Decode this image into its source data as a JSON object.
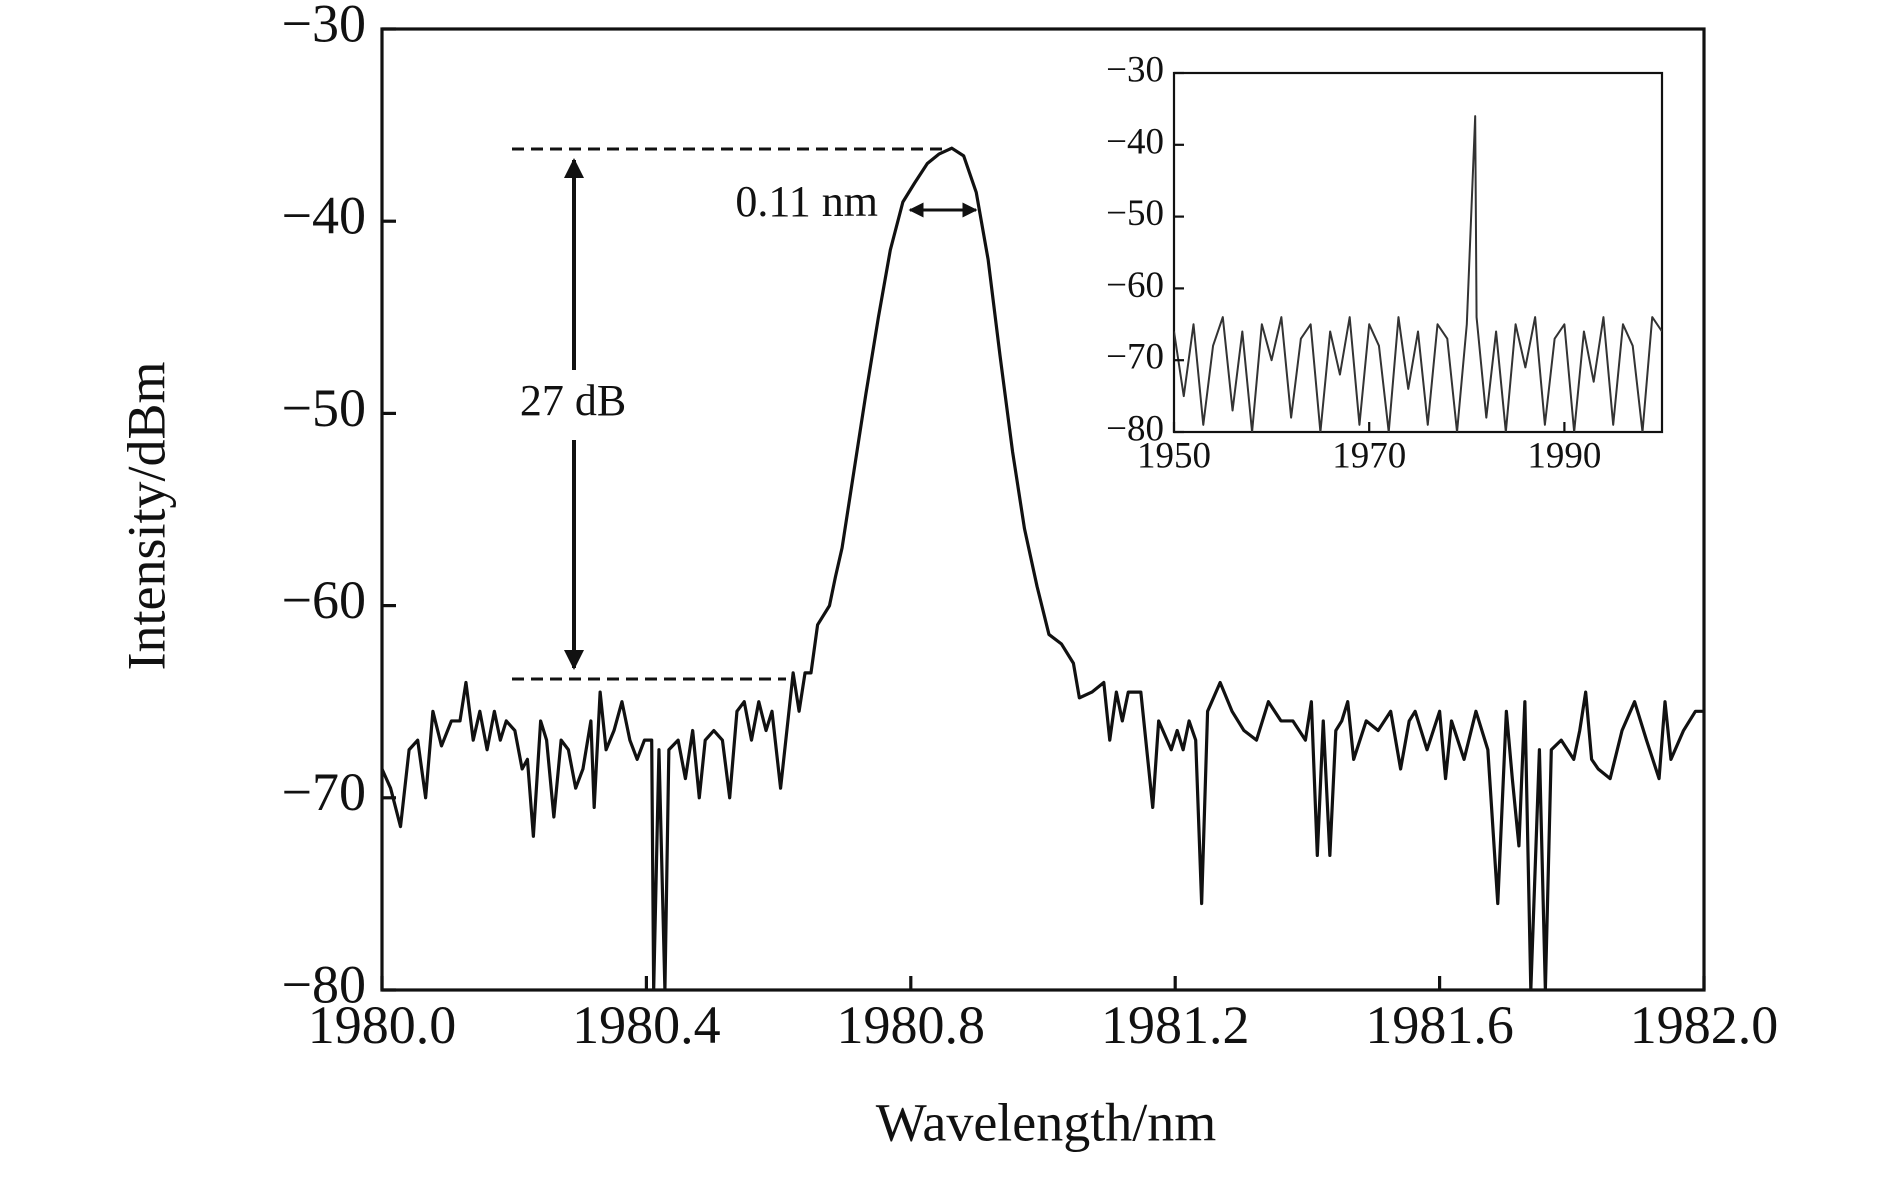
{
  "chart_data": [
    {
      "type": "line",
      "xlabel": "Wavelength/nm",
      "ylabel": "Intensity/dBm",
      "annotations": [
        "0.11 nm",
        "27 dB"
      ],
      "xlim": [
        1980.0,
        1982.0
      ],
      "xticks": [
        {
          "value": 1980.0,
          "label": "1980.0"
        },
        1980.4,
        1980.8,
        1981.2,
        1981.6,
        {
          "value": 1982.0,
          "label": "1982.0"
        }
      ],
      "ylim": [
        -80,
        -30
      ],
      "yticks": [
        {
          "value": -30,
          "label": "−30"
        },
        {
          "value": -40,
          "label": "−40"
        },
        {
          "value": -50,
          "label": "−50"
        },
        {
          "value": -60,
          "label": "−60"
        },
        {
          "value": -70,
          "label": "−70"
        },
        {
          "value": -80,
          "label": "−80"
        }
      ],
      "color": "#111111",
      "x": [
        1980.0,
        1980.013,
        1980.028,
        1980.041,
        1980.054,
        1980.066,
        1980.077,
        1980.09,
        1980.105,
        1980.118,
        1980.127,
        1980.138,
        1980.148,
        1980.159,
        1980.17,
        1980.179,
        1980.188,
        1980.201,
        1980.212,
        1980.22,
        1980.229,
        1980.24,
        1980.249,
        1980.26,
        1980.271,
        1980.282,
        1980.293,
        1980.304,
        1980.316,
        1980.321,
        1980.33,
        1980.339,
        1980.351,
        1980.363,
        1980.375,
        1980.386,
        1980.397,
        1980.408,
        1980.411,
        1980.419,
        1980.428,
        1980.434,
        1980.448,
        1980.459,
        1980.47,
        1980.48,
        1980.489,
        1980.502,
        1980.515,
        1980.526,
        1980.537,
        1980.548,
        1980.559,
        1980.57,
        1980.581,
        1980.59,
        1980.603,
        1980.622,
        1980.631,
        1980.64,
        1980.649,
        1980.659,
        1980.677,
        1980.686,
        1980.696,
        1980.714,
        1980.732,
        1980.751,
        1980.769,
        1980.788,
        1980.806,
        1980.825,
        1980.843,
        1980.862,
        1980.88,
        1980.899,
        1980.917,
        1980.935,
        1980.954,
        1980.972,
        1980.991,
        1981.009,
        1981.028,
        1981.046,
        1981.055,
        1981.074,
        1981.092,
        1981.101,
        1981.111,
        1981.12,
        1981.129,
        1981.148,
        1981.166,
        1981.175,
        1981.194,
        1981.203,
        1981.212,
        1981.221,
        1981.231,
        1981.24,
        1981.249,
        1981.268,
        1981.286,
        1981.304,
        1981.323,
        1981.341,
        1981.36,
        1981.378,
        1981.397,
        1981.406,
        1981.415,
        1981.424,
        1981.434,
        1981.443,
        1981.452,
        1981.461,
        1981.47,
        1981.489,
        1981.507,
        1981.526,
        1981.541,
        1981.554,
        1981.563,
        1981.581,
        1981.6,
        1981.609,
        1981.618,
        1981.637,
        1981.655,
        1981.673,
        1981.688,
        1981.701,
        1981.71,
        1981.72,
        1981.729,
        1981.738,
        1981.751,
        1981.76,
        1981.769,
        1981.784,
        1981.803,
        1981.812,
        1981.821,
        1981.83,
        1981.84,
        1981.858,
        1981.876,
        1981.895,
        1981.913,
        1981.932,
        1981.941,
        1981.95,
        1981.969,
        1981.987,
        1982.0
      ],
      "values": [
        -68.5,
        -69.5,
        -71.5,
        -67.5,
        -67,
        -70,
        -65.5,
        -67.3,
        -66,
        -66,
        -64,
        -67,
        -65.5,
        -67.5,
        -65.5,
        -67,
        -66,
        -66.5,
        -68.5,
        -68,
        -72,
        -66,
        -67,
        -71,
        -67,
        -67.5,
        -69.5,
        -68.5,
        -66,
        -70.5,
        -64.5,
        -67.5,
        -66.5,
        -65,
        -67,
        -68,
        -67,
        -67,
        -80,
        -67.5,
        -80,
        -67.5,
        -67,
        -69,
        -66.5,
        -70,
        -67,
        -66.5,
        -67,
        -70,
        -65.5,
        -65,
        -67,
        -65,
        -66.5,
        -65.5,
        -69.5,
        -63.5,
        -65.5,
        -63.5,
        -63.5,
        -61,
        -60,
        -58.5,
        -57,
        -53,
        -49,
        -45,
        -41.5,
        -39,
        -38,
        -37,
        -36.5,
        -36.2,
        -36.6,
        -38.5,
        -42,
        -47,
        -52,
        -56,
        -59,
        -61.5,
        -62,
        -63,
        -64.8,
        -64.5,
        -64,
        -67,
        -64.5,
        -66,
        -64.5,
        -64.5,
        -70.5,
        -66,
        -67.5,
        -66.5,
        -67.5,
        -66,
        -67,
        -75.5,
        -65.5,
        -64,
        -65.5,
        -66.5,
        -67,
        -65,
        -66,
        -66,
        -67,
        -65,
        -73,
        -66,
        -73,
        -66.5,
        -66,
        -65,
        -68,
        -66,
        -66.5,
        -65.5,
        -68.5,
        -66,
        -65.5,
        -67.5,
        -65.5,
        -69,
        -66,
        -68,
        -65.5,
        -67.5,
        -75.5,
        -65.5,
        -69,
        -72.5,
        -65,
        -80,
        -67.5,
        -80,
        -67.5,
        -67,
        -68,
        -66.5,
        -64.5,
        -68,
        -68.5,
        -69,
        -66.5,
        -65,
        -67,
        -69,
        -65,
        -68,
        -66.5,
        -65.5,
        -65.5
      ]
    },
    {
      "type": "line",
      "xlim": [
        1950,
        2000
      ],
      "xticks": [
        1950,
        1970,
        1990
      ],
      "ylim": [
        -80,
        -30
      ],
      "yticks": [
        {
          "value": -30,
          "label": "−30"
        },
        {
          "value": -40,
          "label": "−40"
        },
        {
          "value": -50,
          "label": "−50"
        },
        {
          "value": -60,
          "label": "−60"
        },
        {
          "value": -70,
          "label": "−70"
        },
        {
          "value": -80,
          "label": "−80"
        }
      ],
      "color": "#333333",
      "x": [
        1950,
        1951,
        1952,
        1953,
        1954,
        1955,
        1956,
        1957,
        1958,
        1959,
        1960,
        1961,
        1962,
        1963,
        1964,
        1965,
        1966,
        1967,
        1968,
        1969,
        1970,
        1971,
        1972,
        1973,
        1974,
        1975,
        1976,
        1977,
        1978,
        1979,
        1980,
        1980.86,
        1981,
        1982,
        1983,
        1984,
        1985,
        1986,
        1987,
        1988,
        1989,
        1990,
        1991,
        1992,
        1993,
        1994,
        1995,
        1996,
        1997,
        1998,
        1999,
        2000
      ],
      "values": [
        -66,
        -75,
        -65,
        -79,
        -68,
        -64,
        -77,
        -66,
        -80,
        -65,
        -70,
        -64,
        -78,
        -67,
        -65,
        -80,
        -66,
        -72,
        -64,
        -79,
        -65,
        -68,
        -80,
        -64,
        -74,
        -66,
        -79,
        -65,
        -67,
        -80,
        -65,
        -36,
        -64,
        -78,
        -66,
        -80,
        -65,
        -71,
        -64,
        -79,
        -67,
        -65,
        -80,
        -66,
        -73,
        -64,
        -79,
        -65,
        -68,
        -80,
        -64,
        -66
      ]
    }
  ]
}
